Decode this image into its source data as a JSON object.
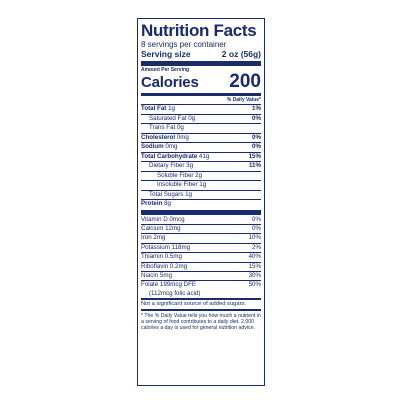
{
  "label": {
    "title": "Nutrition Facts",
    "servings_per_container": "8 servings per container",
    "serving_size_label": "Serving size",
    "serving_size_value": "2 oz (56g)",
    "amount_per_serving": "Amount Per Serving",
    "calories_label": "Calories",
    "calories_value": "200",
    "daily_value_header": "% Daily Value*",
    "nutrients": [
      {
        "name": "Total Fat",
        "amount": "1g",
        "dv": "1%"
      },
      {
        "name": "Saturated Fat 0g",
        "amount": "",
        "dv": "0%"
      },
      {
        "name": "Trans Fat 0g",
        "amount": "",
        "dv": ""
      },
      {
        "name": "Cholesterol",
        "amount": "0mg",
        "dv": "0%"
      },
      {
        "name": "Sodium",
        "amount": "0mg",
        "dv": "0%"
      },
      {
        "name": "Total Carbohydrate",
        "amount": "41g",
        "dv": "15%"
      },
      {
        "name": "Dietary Fiber 3g",
        "amount": "",
        "dv": "11%"
      },
      {
        "name": "Soluble Fiber 2g",
        "amount": "",
        "dv": ""
      },
      {
        "name": "Insoluble Fiber 1g",
        "amount": "",
        "dv": ""
      },
      {
        "name": "Total Sugars 1g",
        "amount": "",
        "dv": ""
      },
      {
        "name": "Protein",
        "amount": "8g",
        "dv": ""
      }
    ],
    "vitamins": [
      {
        "name": "Vitamin D 0mcg",
        "dv": "0%"
      },
      {
        "name": "Calcium 12mg",
        "dv": "0%"
      },
      {
        "name": "Iron 2mg",
        "dv": "10%"
      },
      {
        "name": "Potassium 118mg",
        "dv": "2%"
      },
      {
        "name": "Thiamin 0.5mg",
        "dv": "40%"
      },
      {
        "name": "Riboflavin 0.2mg",
        "dv": "15%"
      },
      {
        "name": "Niacin 5mg",
        "dv": "30%"
      },
      {
        "name": "Folate 199mcg DFE",
        "dv": "50%"
      }
    ],
    "folate_sub": "(112mcg folic acid)",
    "added_sugars_note": "Not a significant source of added sugars.",
    "footnote": "* The % Daily Value tells you how much a nutrient in a serving of food contributes to a daily diet. 2,000 calories a day is used for general nutrition advice."
  }
}
